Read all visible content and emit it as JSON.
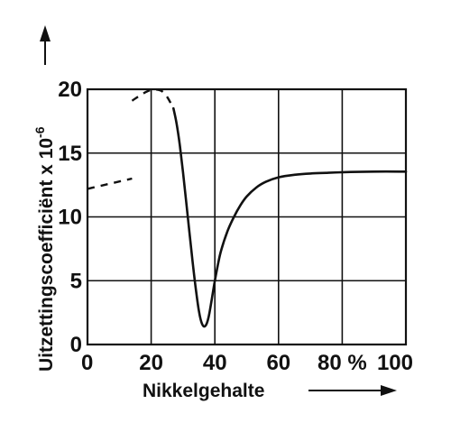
{
  "chart_data": {
    "type": "line",
    "xlabel": "Nikkelgehalte",
    "ylabel": "Uitzettingscoefficiënt x 10",
    "ylabel_exponent": "-6",
    "x_tick_labels": [
      "0",
      "20",
      "40",
      "60",
      "80 %",
      "100"
    ],
    "x_ticks": [
      0,
      20,
      40,
      60,
      80,
      100
    ],
    "y_tick_labels": [
      "0",
      "5",
      "10",
      "15",
      "20"
    ],
    "y_ticks": [
      0,
      5,
      10,
      15,
      20
    ],
    "xlim": [
      0,
      100
    ],
    "ylim": [
      0,
      20
    ],
    "grid": true,
    "series": [
      {
        "style": "dashed",
        "x": [
          0,
          14
        ],
        "y": [
          12.2,
          13.0
        ]
      },
      {
        "style": "dashed",
        "x": [
          14,
          17,
          20,
          23,
          25,
          27
        ],
        "y": [
          19.1,
          19.6,
          19.95,
          19.9,
          19.4,
          18.5
        ]
      },
      {
        "style": "solid",
        "x": [
          27,
          28,
          29,
          30,
          31,
          32,
          33,
          34,
          35,
          36,
          37,
          38,
          39,
          40,
          41,
          42,
          44,
          46,
          48,
          50,
          53,
          56,
          60,
          65,
          70,
          75,
          80,
          90,
          100
        ],
        "y": [
          18.5,
          17.3,
          15.6,
          13.5,
          11.2,
          8.8,
          6.5,
          4.4,
          2.6,
          1.6,
          1.45,
          2.1,
          3.5,
          5.0,
          6.3,
          7.4,
          8.9,
          10.0,
          10.9,
          11.6,
          12.3,
          12.75,
          13.1,
          13.3,
          13.4,
          13.45,
          13.5,
          13.55,
          13.55
        ]
      }
    ]
  }
}
